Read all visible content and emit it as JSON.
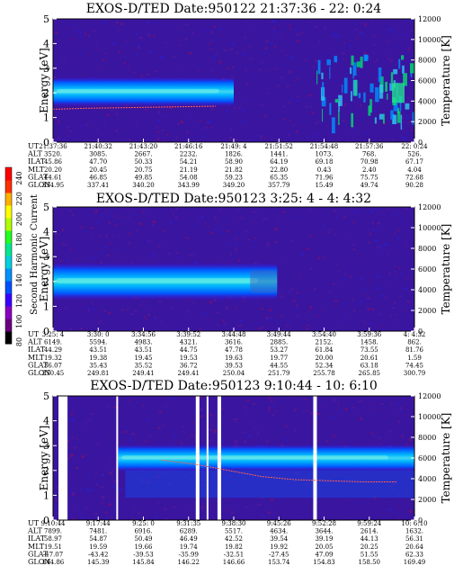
{
  "chart_data": {
    "type": "heatmap",
    "colorbar": {
      "label": "Second Harmonic Current",
      "ticks": [
        "240",
        "220",
        "200",
        "180",
        "160",
        "140",
        "120",
        "100",
        "80"
      ],
      "range": [
        80,
        240
      ]
    },
    "panels": [
      {
        "title": "EXOS-D/TED   Date:950122  21:37:36 - 22: 0:24",
        "ylabel": "Energy [eV]",
        "y2label": "Temperature [K]",
        "ylim": [
          0,
          5
        ],
        "y2lim": [
          0,
          12000
        ],
        "yticks": [
          "0",
          "1",
          "2",
          "3",
          "4",
          "5"
        ],
        "y2ticks": [
          "0",
          "2000",
          "4000",
          "6000",
          "8000",
          "10000",
          "12000"
        ],
        "table": {
          "row_labels": [
            "UT",
            "ALT",
            "ILAT",
            "MLT",
            "GLAT",
            "GLON"
          ],
          "columns": [
            [
              "21:37:36",
              "3520.",
              "45.86",
              "20.20",
              "44.61",
              "334.95"
            ],
            [
              "21:40:32",
              "3085.",
              "47.70",
              "20.45",
              "46.85",
              "337.41"
            ],
            [
              "21:43:20",
              "2667.",
              "50.33",
              "20.75",
              "49.85",
              "340.20"
            ],
            [
              "21:46:16",
              "2232.",
              "54.21",
              "21.19",
              "54.08",
              "343.99"
            ],
            [
              "21:49: 4",
              "1826.",
              "58.90",
              "21.82",
              "59.23",
              "349.20"
            ],
            [
              "21:51:52",
              "1441.",
              "64.19",
              "22.80",
              "65.35",
              "357.79"
            ],
            [
              "21:54:48",
              "1073.",
              "69.18",
              "0.43",
              "71.96",
              "15.49"
            ],
            [
              "21:57:36",
              "768.",
              "70.98",
              "2.40",
              "75.75",
              "49.74"
            ],
            [
              "22: 0:24",
              "526.",
              "67.17",
              "4.04",
              "72.68",
              "90.28"
            ]
          ]
        },
        "band": {
          "center_ev": 2.05,
          "halfwidth_ev": 0.6,
          "start_frac": 0.0,
          "end_frac": 0.5,
          "scattered_end_frac": 0.7
        },
        "temperature_trace": {
          "from_frac": 0.0,
          "to_frac": 0.45,
          "values_k": [
            3200,
            3300,
            3350,
            3400,
            3450,
            3500
          ]
        }
      },
      {
        "title": "EXOS-D/TED   Date:950123  3:25: 4 - 4: 4:32",
        "ylabel": "Energy [eV]",
        "y2label": "Temperature [K]",
        "ylim": [
          0,
          5
        ],
        "y2lim": [
          0,
          12000
        ],
        "yticks": [
          "0",
          "1",
          "2",
          "3",
          "4",
          "5"
        ],
        "y2ticks": [
          "0",
          "2000",
          "4000",
          "6000",
          "8000",
          "10000",
          "12000"
        ],
        "table": {
          "row_labels": [
            "UT",
            "ALT",
            "ILAT",
            "MLT",
            "GLAT",
            "GLON"
          ],
          "columns": [
            [
              "3:25: 4",
              "6149.",
              "44.29",
              "19.32",
              "36.07",
              "250.45"
            ],
            [
              "3:30: 0",
              "5594.",
              "43.51",
              "19.38",
              "35.43",
              "249.81"
            ],
            [
              "3:34:56",
              "4983.",
              "43.51",
              "19.45",
              "35.52",
              "249.41"
            ],
            [
              "3:39:52",
              "4321.",
              "44.75",
              "19.53",
              "36.72",
              "249.41"
            ],
            [
              "3:44:48",
              "3616.",
              "47.78",
              "19.63",
              "39.53",
              "250.04"
            ],
            [
              "3:49:44",
              "2885.",
              "53.27",
              "19.77",
              "44.55",
              "251.79"
            ],
            [
              "3:54:40",
              "2152.",
              "61.84",
              "20.00",
              "52.34",
              "255.78"
            ],
            [
              "3:59:36",
              "1458.",
              "73.55",
              "20.61",
              "63.18",
              "265.85"
            ],
            [
              "4: 4:32",
              "862.",
              "81.76",
              "1.59",
              "74.45",
              "300.79"
            ]
          ]
        },
        "band": {
          "center_ev": 2.0,
          "halfwidth_ev": 0.75,
          "start_frac": 0.0,
          "end_frac": 0.62,
          "scattered_end_frac": 0.62
        }
      },
      {
        "title": "EXOS-D/TED   Date:950123  9:10:44 - 10: 6:10",
        "ylabel": "Energy [eV]",
        "y2label": "Temperature [K]",
        "ylim": [
          0,
          5
        ],
        "y2lim": [
          0,
          12000
        ],
        "yticks": [
          "0",
          "1",
          "2",
          "3",
          "4",
          "5"
        ],
        "y2ticks": [
          "0",
          "2000",
          "4000",
          "6000",
          "8000",
          "10000",
          "12000"
        ],
        "table": {
          "row_labels": [
            "UT",
            "ALT",
            "ILAT",
            "MLT",
            "GLAT",
            "GLON"
          ],
          "columns": [
            [
              "9:10:44",
              "7899.",
              "58.97",
              "19.51",
              "-47.07",
              "144.86"
            ],
            [
              "9:17:44",
              "7481.",
              "54.87",
              "19.59",
              "-43.42",
              "145.39"
            ],
            [
              "9:25: 0",
              "6916.",
              "50.49",
              "19.66",
              "-39.53",
              "145.84"
            ],
            [
              "9:31:35",
              "6289.",
              "46.49",
              "19.74",
              "-35.99",
              "146.22"
            ],
            [
              "9:38:30",
              "5517.",
              "42.52",
              "19.82",
              "-32.51",
              "146.66"
            ],
            [
              "9:45:26",
              "4634.",
              "39.54",
              "19.92",
              "-27.45",
              "153.74"
            ],
            [
              "9:52:28",
              "3644.",
              "39.19",
              "20.05",
              "47.09",
              "154.83"
            ],
            [
              "9:59:24",
              "2614.",
              "44.13",
              "20.25",
              "51.55",
              "158.50"
            ],
            [
              "10: 6:10",
              "1632.",
              "56.31",
              "20.64",
              "62.33",
              "169.49"
            ]
          ]
        },
        "band": {
          "center_ev": 2.5,
          "halfwidth_ev": 0.55,
          "start_frac": 0.18,
          "end_frac": 1.0,
          "scattered_end_frac": 1.0
        },
        "gaps_frac": [
          [
            0.015,
            0.04
          ],
          [
            0.175,
            0.18
          ],
          [
            0.395,
            0.405
          ],
          [
            0.425,
            0.43
          ],
          [
            0.455,
            0.465
          ],
          [
            0.72,
            0.73
          ]
        ],
        "temperature_trace": {
          "from_frac": 0.3,
          "to_frac": 0.95,
          "values_k": [
            5800,
            5400,
            4800,
            4200,
            3900,
            3800,
            3700,
            3700
          ]
        }
      }
    ]
  }
}
